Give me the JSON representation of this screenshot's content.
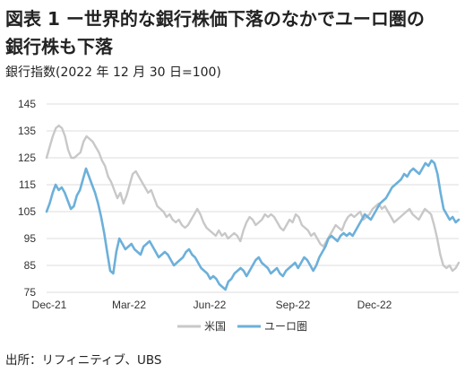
{
  "title_line1": "図表 1 ー世界的な銀行株価下落のなかでユーロ圏の",
  "title_line2": "銀行株も下落",
  "subtitle": "銀行指数(2022 年 12 月 30 日=100)",
  "source": "出所：リフィニティブ、UBS",
  "chart_data": {
    "type": "line",
    "title": "",
    "xlabel": "",
    "ylabel": "",
    "x_tick_labels": [
      "Dec-21",
      "Mar-22",
      "Jun-22",
      "Sep-22",
      "Dec-22"
    ],
    "y_ticks": [
      75,
      85,
      95,
      105,
      115,
      125,
      135,
      145
    ],
    "ylim": [
      75,
      145
    ],
    "grid": "horizontal",
    "legend_position": "bottom-center",
    "series": [
      {
        "name": "米国",
        "color": "#c8c8c8",
        "values": [
          125,
          129,
          133,
          136,
          137,
          136,
          133,
          128,
          125,
          125,
          126,
          127,
          131,
          133,
          132,
          131,
          129,
          127,
          124,
          122,
          118,
          116,
          113,
          110,
          112,
          108,
          111,
          115,
          119,
          120,
          118,
          116,
          114,
          112,
          113,
          110,
          107,
          106,
          105,
          103,
          104,
          102,
          101,
          102,
          100,
          99,
          100,
          102,
          104,
          106,
          104,
          101,
          99,
          98,
          97,
          96,
          98,
          96,
          97,
          95,
          96,
          97,
          96,
          94,
          98,
          101,
          103,
          102,
          100,
          101,
          102,
          104,
          103,
          104,
          103,
          101,
          99,
          98,
          100,
          102,
          101,
          104,
          103,
          100,
          99,
          98,
          96,
          97,
          95,
          93,
          92,
          94,
          96,
          98,
          100,
          99,
          98,
          101,
          103,
          104,
          103,
          104,
          105,
          102,
          103,
          104,
          106,
          107,
          108,
          106,
          107,
          105,
          103,
          101,
          102,
          103,
          104,
          105,
          106,
          104,
          103,
          102,
          104,
          106,
          105,
          104,
          100,
          95,
          89,
          85,
          84,
          85,
          83,
          84,
          86
        ]
      },
      {
        "name": "ユーロ圏",
        "color": "#6cb0da",
        "values": [
          105,
          108,
          112,
          115,
          113,
          114,
          112,
          109,
          106,
          107,
          111,
          113,
          117,
          121,
          118,
          115,
          112,
          108,
          103,
          97,
          90,
          83,
          82,
          90,
          95,
          93,
          91,
          92,
          93,
          91,
          90,
          89,
          92,
          93,
          94,
          92,
          90,
          88,
          89,
          90,
          89,
          87,
          85,
          86,
          87,
          88,
          90,
          91,
          89,
          88,
          86,
          84,
          83,
          82,
          80,
          81,
          80,
          78,
          77,
          76,
          79,
          80,
          82,
          83,
          84,
          83,
          81,
          83,
          85,
          87,
          88,
          86,
          85,
          84,
          82,
          83,
          84,
          82,
          81,
          83,
          84,
          85,
          86,
          84,
          86,
          88,
          87,
          85,
          83,
          85,
          88,
          90,
          92,
          95,
          96,
          95,
          94,
          96,
          97,
          96,
          97,
          96,
          98,
          100,
          102,
          104,
          103,
          102,
          104,
          106,
          108,
          109,
          110,
          112,
          114,
          115,
          116,
          117,
          119,
          118,
          120,
          121,
          120,
          119,
          121,
          123,
          122,
          124,
          123,
          119,
          112,
          106,
          104,
          102,
          103,
          101,
          102
        ]
      }
    ]
  }
}
